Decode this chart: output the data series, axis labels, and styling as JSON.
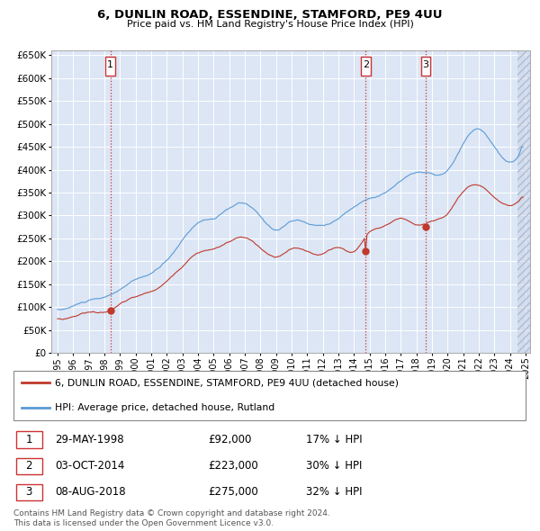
{
  "title1": "6, DUNLIN ROAD, ESSENDINE, STAMFORD, PE9 4UU",
  "title2": "Price paid vs. HM Land Registry's House Price Index (HPI)",
  "ylabel_vals": [
    0,
    50000,
    100000,
    150000,
    200000,
    250000,
    300000,
    350000,
    400000,
    450000,
    500000,
    550000,
    600000,
    650000
  ],
  "hpi_color": "#5b9bd5",
  "price_color": "#c0392b",
  "sale1_date": "29-MAY-1998",
  "sale1_price": 92000,
  "sale1_pct": "17% ↓ HPI",
  "sale2_date": "03-OCT-2014",
  "sale2_price": 223000,
  "sale2_pct": "30% ↓ HPI",
  "sale3_date": "08-AUG-2018",
  "sale3_price": 275000,
  "sale3_pct": "32% ↓ HPI",
  "legend_label1": "6, DUNLIN ROAD, ESSENDINE, STAMFORD, PE9 4UU (detached house)",
  "legend_label2": "HPI: Average price, detached house, Rutland",
  "footer": "Contains HM Land Registry data © Crown copyright and database right 2024.\nThis data is licensed under the Open Government Licence v3.0.",
  "sale_years": [
    1998.38,
    2014.75,
    2018.58
  ],
  "sale_prices": [
    92000,
    223000,
    275000
  ],
  "vline_color": "#cc3333",
  "marker_box_color": "#cc3333",
  "ylim": [
    0,
    660000
  ],
  "plot_bg": "#dce6f5"
}
